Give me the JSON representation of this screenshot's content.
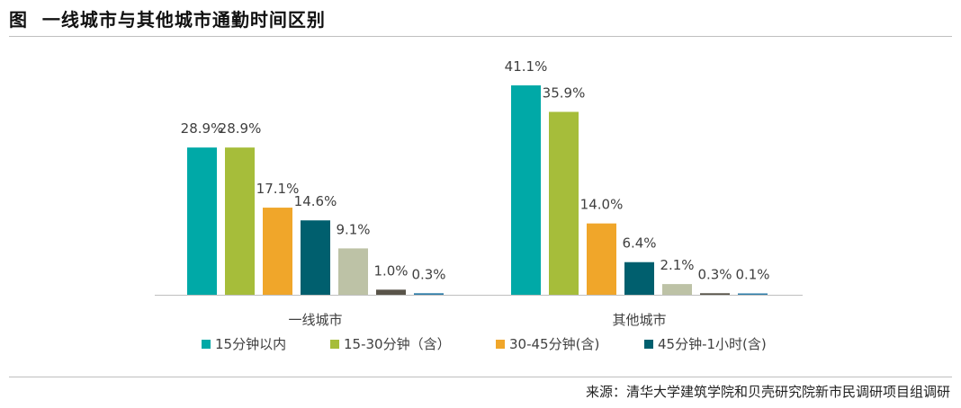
{
  "header": {
    "title": "图  一线城市与其他城市通勤时间区别"
  },
  "footer": {
    "source": "来源：清华大学建筑学院和贝壳研究院新市民调研项目组调研"
  },
  "chart_data": {
    "type": "bar",
    "categories": [
      "一线城市",
      "其他城市"
    ],
    "series": [
      {
        "name": "15分钟以内",
        "color": "#00A9A7",
        "values": [
          28.9,
          41.1
        ]
      },
      {
        "name": "15-30分钟（含）",
        "color": "#A6BD3A",
        "values": [
          28.9,
          35.9
        ]
      },
      {
        "name": "30-45分钟(含)",
        "color": "#F0A62A",
        "values": [
          17.1,
          14.0
        ]
      },
      {
        "name": "45分钟-1小时(含)",
        "color": "#005F6E",
        "values": [
          14.6,
          6.4
        ]
      },
      {
        "name": "",
        "color": "#BDC2A6",
        "values": [
          9.1,
          2.1
        ]
      },
      {
        "name": "",
        "color": "#595449",
        "values": [
          1.0,
          0.3
        ]
      },
      {
        "name": "",
        "color": "#2E7DA8",
        "values": [
          0.3,
          0.1
        ]
      }
    ],
    "data_labels": [
      [
        "28.9%",
        "28.9%",
        "17.1%",
        "14.6%",
        "9.1%",
        "1.0%",
        "0.3%"
      ],
      [
        "41.1%",
        "35.9%",
        "14.0%",
        "6.4%",
        "2.1%",
        "0.3%",
        "0.1%"
      ]
    ],
    "unit": "%",
    "ylim": [
      0,
      41.1
    ],
    "legend_position": "bottom",
    "grid": false
  }
}
